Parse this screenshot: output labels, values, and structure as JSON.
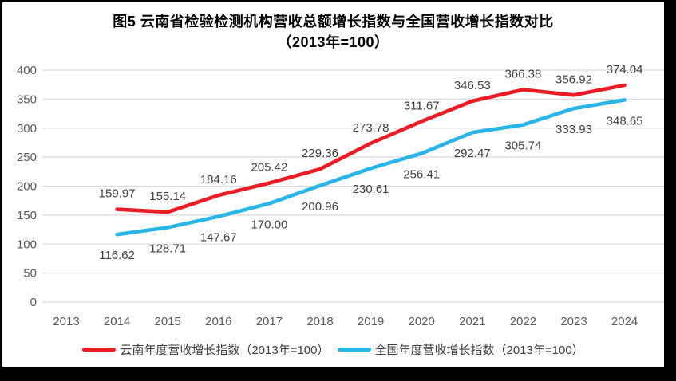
{
  "frame": {
    "border_color": "#000000",
    "background": "#ffffff"
  },
  "chart_data": {
    "type": "line",
    "title_line1": "图5  云南省检验检测机构营收总额增长指数与全国营收增长指数对比",
    "title_line2": "（2013年=100）",
    "categories": [
      2013,
      2014,
      2015,
      2016,
      2017,
      2018,
      2019,
      2020,
      2021,
      2022,
      2023,
      2024
    ],
    "y_ticks": [
      0,
      50,
      100,
      150,
      200,
      250,
      300,
      350,
      400
    ],
    "ylim": [
      0,
      400
    ],
    "grid": "horizontal",
    "legend_position": "bottom",
    "series": [
      {
        "id": "yunnan",
        "name": "云南年度营收增长指数（2013年=100）",
        "color": "#ec1c24",
        "label_side": "above",
        "start_year": 2014,
        "values": [
          159.97,
          155.14,
          184.16,
          205.42,
          229.36,
          273.78,
          311.67,
          346.53,
          366.38,
          356.92,
          374.04
        ]
      },
      {
        "id": "national",
        "name": "全国年度营收增长指数（2013年=100）",
        "color": "#29b5e8",
        "label_side": "below",
        "start_year": 2014,
        "values": [
          116.62,
          128.71,
          147.67,
          170.0,
          200.96,
          230.61,
          256.41,
          292.47,
          305.74,
          333.93,
          348.65
        ]
      }
    ],
    "colors": {
      "gridline": "#d9d9d9",
      "axis_text": "#595959",
      "data_label_text": "#404040",
      "title_text": "#000000"
    }
  }
}
